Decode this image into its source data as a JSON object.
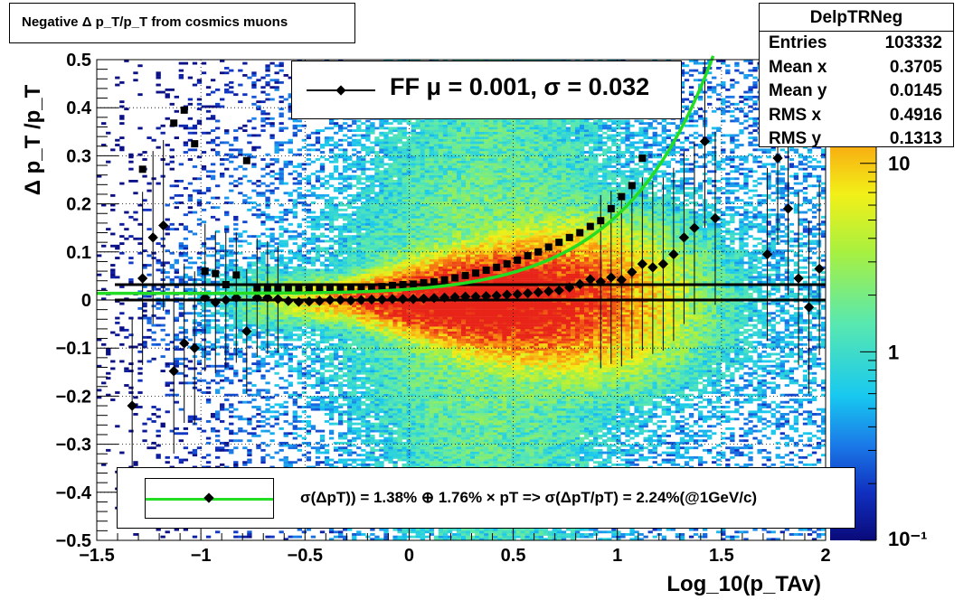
{
  "chart_data": {
    "type": "heatmap",
    "title": "Negative Δ p_T/p_T from cosmics muons",
    "xlabel": "Log_10(p_TAv)",
    "ylabel": "Δ p_T /p_T",
    "xlim": [
      -1.5,
      2
    ],
    "ylim": [
      -0.5,
      0.5
    ],
    "x_ticks": [
      "−1.5",
      "−1",
      "−0.5",
      "0",
      "0.5",
      "1",
      "1.5",
      "2"
    ],
    "y_ticks": [
      "−0.5",
      "−0.4",
      "−0.3",
      "−0.2",
      "−0.1",
      "0",
      "0.1",
      "0.2",
      "0.3",
      "0.4",
      "0.5"
    ],
    "colorbar": {
      "scale": "log",
      "labels": [
        {
          "value": 10,
          "text": "10"
        },
        {
          "value": 1,
          "text": "1"
        },
        {
          "value": 0.1,
          "text": "10⁻¹"
        }
      ]
    },
    "grid": true,
    "stats": {
      "name": "DelpTRNeg",
      "rows": [
        {
          "label": "Entries",
          "value": "103332"
        },
        {
          "label": "Mean x",
          "value": "0.3705"
        },
        {
          "label": "Mean y",
          "value": "0.0145"
        },
        {
          "label": "RMS x",
          "value": "0.4916"
        },
        {
          "label": "RMS y",
          "value": "0.1313"
        }
      ]
    },
    "legend_fit": "FF μ =  0.001, σ =   0.032",
    "legend_resolution": "σ(ΔpT)) =  1.38% ⊕  1.76% × pT => σ(ΔpT/pT) =  2.24%(@1GeV/c)",
    "mean_points": {
      "x": [
        -1.33,
        -1.28,
        -1.23,
        -1.18,
        -1.13,
        -1.08,
        -1.03,
        -0.98,
        -0.93,
        -0.88,
        -0.83,
        -0.78,
        -0.73,
        -0.68,
        -0.63,
        -0.58,
        -0.53,
        -0.48,
        -0.43,
        -0.38,
        -0.33,
        -0.28,
        -0.23,
        -0.18,
        -0.13,
        -0.08,
        -0.03,
        0.02,
        0.07,
        0.12,
        0.17,
        0.22,
        0.27,
        0.32,
        0.37,
        0.42,
        0.47,
        0.52,
        0.57,
        0.62,
        0.67,
        0.72,
        0.77,
        0.82,
        0.87,
        0.92,
        0.97,
        1.02,
        1.07,
        1.12,
        1.17,
        1.22,
        1.27,
        1.32,
        1.37,
        1.42,
        1.47,
        1.72,
        1.77,
        1.82,
        1.87,
        1.92,
        1.97
      ],
      "y": [
        -0.22,
        0.045,
        0.13,
        0.155,
        -0.148,
        -0.09,
        -0.1,
        0.005,
        -0.005,
        0.0,
        0.005,
        -0.065,
        0.005,
        0.005,
        0.002,
        -0.002,
        -0.004,
        -0.003,
        -0.002,
        0.0,
        0.0,
        -0.001,
        0.0,
        0.001,
        0.001,
        0.002,
        0.002,
        0.002,
        0.003,
        0.004,
        0.005,
        0.006,
        0.007,
        0.007,
        0.008,
        0.009,
        0.011,
        0.012,
        0.014,
        0.016,
        0.018,
        0.02,
        0.026,
        0.033,
        0.043,
        0.038,
        0.047,
        0.042,
        0.058,
        0.075,
        0.068,
        0.075,
        0.095,
        0.13,
        0.15,
        0.33,
        0.17,
        0.095,
        0.295,
        0.19,
        0.045,
        -0.015,
        0.065
      ]
    },
    "resolution_points": {
      "x": [
        -1.28,
        -1.13,
        -1.08,
        -1.03,
        -0.98,
        -0.93,
        -0.88,
        -0.83,
        -0.78,
        -0.73,
        -0.68,
        -0.63,
        -0.58,
        -0.53,
        -0.48,
        -0.43,
        -0.38,
        -0.33,
        -0.28,
        -0.23,
        -0.18,
        -0.13,
        -0.08,
        -0.03,
        0.02,
        0.07,
        0.12,
        0.17,
        0.22,
        0.27,
        0.32,
        0.37,
        0.42,
        0.47,
        0.52,
        0.57,
        0.62,
        0.67,
        0.72,
        0.77,
        0.82,
        0.87,
        0.92,
        0.97,
        1.02,
        1.07,
        1.12
      ],
      "y": [
        0.272,
        0.368,
        0.395,
        0.325,
        0.06,
        0.055,
        0.032,
        0.052,
        0.29,
        0.025,
        0.022,
        0.024,
        0.022,
        0.023,
        0.022,
        0.023,
        0.024,
        0.025,
        0.026,
        0.026,
        0.027,
        0.028,
        0.03,
        0.032,
        0.033,
        0.036,
        0.038,
        0.042,
        0.046,
        0.051,
        0.056,
        0.062,
        0.068,
        0.075,
        0.083,
        0.092,
        0.1,
        0.11,
        0.12,
        0.13,
        0.14,
        0.153,
        0.165,
        0.19,
        0.215,
        0.238,
        0.295
      ]
    },
    "fit_curve": "sqrt(0.0138^2 + (0.0176*10^x)^2)",
    "fit_color": "#22dd22",
    "reference_lines": [
      0,
      0.032
    ]
  }
}
